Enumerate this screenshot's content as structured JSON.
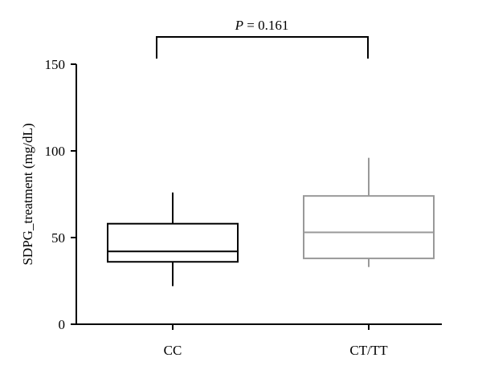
{
  "chart_data": {
    "type": "box",
    "ylabel": "SDPG_treatment (mg/dL)",
    "ylim": [
      0,
      150
    ],
    "yticks": [
      0,
      50,
      100,
      150
    ],
    "categories": [
      "CC",
      "CT/TT"
    ],
    "boxes": [
      {
        "category": "CC",
        "min": 22,
        "q1": 36,
        "median": 42,
        "q3": 58,
        "max": 76,
        "color": "#000000"
      },
      {
        "category": "CT/TT",
        "min": 33,
        "q1": 38,
        "median": 53,
        "q3": 74,
        "max": 96,
        "color": "#999999"
      }
    ],
    "annotation": {
      "p_symbol": "P",
      "p_rest": " = 0.161"
    }
  }
}
